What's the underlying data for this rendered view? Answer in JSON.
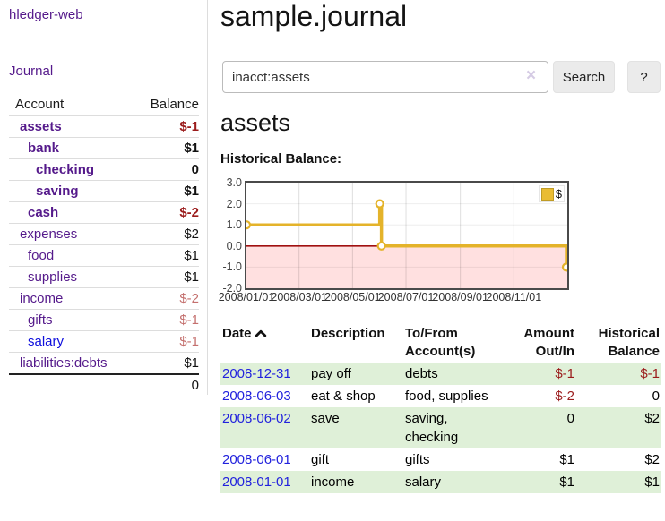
{
  "app": {
    "brand": "hledger-web",
    "nav_journal": "Journal"
  },
  "colors": {
    "visited_link_purple": "#551a8b",
    "unvisited_link_blue": "#0f0fdd",
    "date_link_blue": "#2222dd",
    "negative_red": "#9b1c1c",
    "negative_muted_red": "#c4706e",
    "shaded_row_green": "#dff0d8",
    "chart_line_gold": "#e4b32a",
    "chart_negative_region_pink": "#ffe0e0",
    "chart_zero_line_red": "#a01010"
  },
  "sidebar": {
    "header": {
      "account": "Account",
      "balance": "Balance"
    },
    "accounts": [
      {
        "name": "assets",
        "balance": "$-1",
        "depth": 1,
        "bold": true,
        "negative": true
      },
      {
        "name": "bank",
        "balance": "$1",
        "depth": 2,
        "bold": true
      },
      {
        "name": "checking",
        "balance": "0",
        "depth": 3,
        "bold": true
      },
      {
        "name": "saving",
        "balance": "$1",
        "depth": 3,
        "bold": true
      },
      {
        "name": "cash",
        "balance": "$-2",
        "depth": 2,
        "bold": true,
        "negative": true
      },
      {
        "name": "expenses",
        "balance": "$2",
        "depth": 1
      },
      {
        "name": "food",
        "balance": "$1",
        "depth": 2
      },
      {
        "name": "supplies",
        "balance": "$1",
        "depth": 2
      },
      {
        "name": "income",
        "balance": "$-2",
        "depth": 1,
        "muted": true
      },
      {
        "name": "gifts",
        "balance": "$-1",
        "depth": 2,
        "muted": true
      },
      {
        "name": "salary",
        "balance": "$-1",
        "depth": 2,
        "muted": true,
        "unvisited": true
      },
      {
        "name": "liabilities:debts",
        "balance": "$1",
        "depth": 1
      }
    ],
    "total": "0"
  },
  "header": {
    "title": "sample.journal"
  },
  "search": {
    "value": "inacct:assets",
    "clear_icon": "×",
    "button_label": "Search",
    "help_label": "?"
  },
  "account_page": {
    "title": "assets",
    "chart_label": "Historical Balance:"
  },
  "chart_data": {
    "type": "line",
    "interpolation": "step",
    "title": "Historical Balance:",
    "legend": [
      {
        "label": "$",
        "color": "#e9bc33"
      }
    ],
    "legend_position": "top-right",
    "ylim": [
      -2,
      3
    ],
    "yticks": [
      "3.0",
      "2.0",
      "1.0",
      "0.0",
      "-1.0",
      "-2.0"
    ],
    "xrange": [
      "2008-01-01",
      "2009-01-01"
    ],
    "xtick_dates": [
      "2008-01-01",
      "2008-03-01",
      "2008-05-01",
      "2008-07-01",
      "2008-09-01",
      "2008-11-01"
    ],
    "xticks": [
      "2008/01/01",
      "2008/03/01",
      "2008/05/01",
      "2008/07/01",
      "2008/09/01",
      "2008/11/01"
    ],
    "grid": true,
    "series": [
      {
        "name": "$",
        "color": "#e4b32a",
        "points": [
          [
            "2008-01-01",
            1
          ],
          [
            "2008-06-01",
            2
          ],
          [
            "2008-06-03",
            0
          ],
          [
            "2008-12-31",
            -1
          ]
        ]
      }
    ],
    "negative_region_color": "#ffe0e0",
    "zero_line_color": "#a01010"
  },
  "register": {
    "headers": {
      "date": "Date",
      "description": "Description",
      "accounts": "To/From Account(s)",
      "amount": "Amount Out/In",
      "balance": "Historical Balance"
    },
    "sort": {
      "column": "date",
      "direction": "ascending"
    },
    "rows": [
      {
        "date": "2008-12-31",
        "description": "pay off",
        "accounts": "debts",
        "amount": "$-1",
        "amount_negative": true,
        "balance": "$-1",
        "balance_negative": true,
        "shaded": true
      },
      {
        "date": "2008-06-03",
        "description": "eat & shop",
        "accounts": "food, supplies",
        "amount": "$-2",
        "amount_negative": true,
        "balance": "0",
        "shaded": false
      },
      {
        "date": "2008-06-02",
        "description": "save",
        "accounts": "saving, checking",
        "amount": "0",
        "balance": "$2",
        "shaded": true
      },
      {
        "date": "2008-06-01",
        "description": "gift",
        "accounts": "gifts",
        "amount": "$1",
        "balance": "$2",
        "shaded": false
      },
      {
        "date": "2008-01-01",
        "description": "income",
        "accounts": "salary",
        "amount": "$1",
        "balance": "$1",
        "shaded": true
      }
    ]
  }
}
